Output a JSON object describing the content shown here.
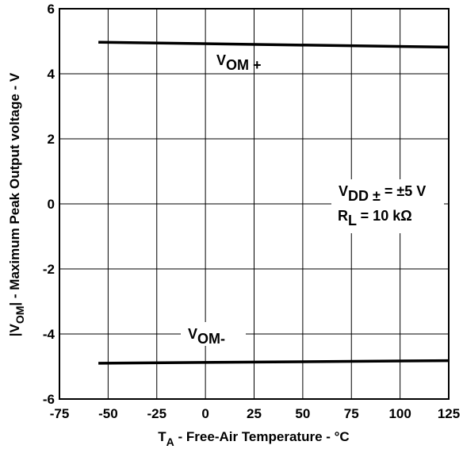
{
  "chart_data": {
    "type": "line",
    "xlabel": {
      "main": "T",
      "sub": "A",
      "rest": " - Free-Air Temperature - °C"
    },
    "ylabel": {
      "pre": "|V",
      "sub": "OM",
      "rest": "| - Maximum Peak Output voltage - V"
    },
    "xlim": [
      -75,
      125
    ],
    "ylim": [
      -6,
      6
    ],
    "x_ticks": [
      -75,
      -50,
      -25,
      0,
      25,
      50,
      75,
      100,
      125
    ],
    "y_ticks": [
      -6,
      -4,
      -2,
      0,
      2,
      4,
      6
    ],
    "grid": true,
    "series": [
      {
        "name": "VOM+",
        "x": [
          -55,
          125
        ],
        "y": [
          4.97,
          4.82
        ]
      },
      {
        "name": "VOM-",
        "x": [
          -55,
          125
        ],
        "y": [
          -4.9,
          -4.82
        ]
      }
    ],
    "annotations": {
      "vom_plus": {
        "main": "V",
        "sub": "OM +"
      },
      "vom_minus": {
        "main": "V",
        "sub": "OM-"
      },
      "vdd": {
        "main": "V",
        "sub": "DD ±",
        "rest": " = ±5 V"
      },
      "rl": {
        "main": "R",
        "sub": "L",
        "rest": " = 10 kΩ"
      }
    }
  }
}
